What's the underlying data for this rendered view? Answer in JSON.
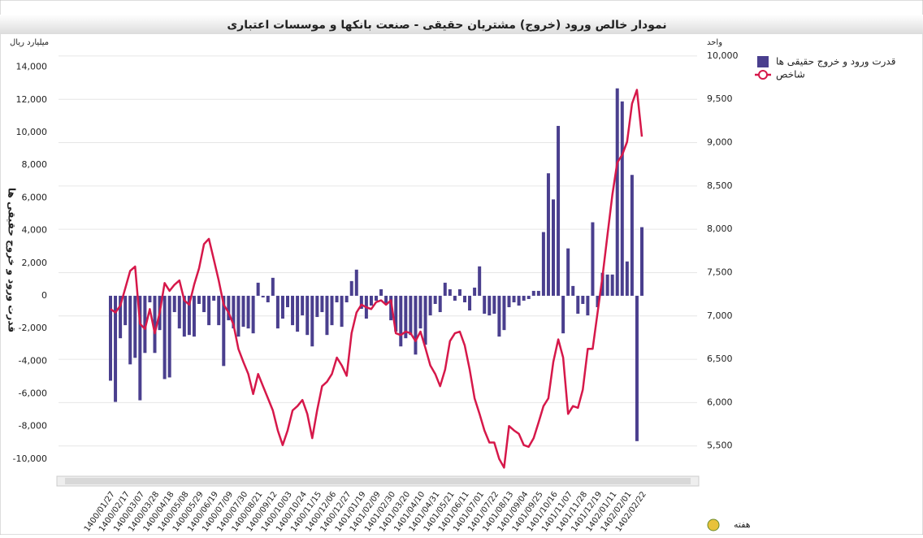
{
  "chart_data": {
    "type": "bar_line",
    "title": "نمودار خالص ورود (خروج) مشتریان حقیقی - صنعت بانکها و موسسات اعتباری",
    "y_unit": "میلیارد ریال",
    "y2_unit": "واحد",
    "ylabel": "قدرت ورود و خروج حقیقی ها",
    "xlabel": "هفته",
    "categories": [
      "1400/01/27",
      null,
      null,
      "1400/02/17",
      null,
      null,
      "1400/03/07",
      null,
      null,
      "1400/03/28",
      null,
      null,
      "1400/04/18",
      null,
      null,
      "1400/05/08",
      null,
      null,
      "1400/05/29",
      null,
      null,
      "1400/06/19",
      null,
      null,
      "1400/07/09",
      null,
      null,
      "1400/07/30",
      null,
      null,
      "1400/08/21",
      null,
      null,
      "1400/09/12",
      null,
      null,
      "1400/10/03",
      null,
      null,
      "1400/10/24",
      null,
      null,
      "1400/11/15",
      null,
      null,
      "1400/12/06",
      null,
      null,
      "1400/12/27",
      null,
      null,
      "1401/01/19",
      null,
      null,
      "1401/02/09",
      null,
      null,
      "1401/02/30",
      null,
      null,
      "1401/03/20",
      null,
      null,
      "1401/04/10",
      null,
      null,
      "1401/04/31",
      null,
      null,
      "1401/05/21",
      null,
      null,
      "1401/06/11",
      null,
      null,
      "1401/07/01",
      null,
      null,
      "1401/07/22",
      null,
      null,
      "1401/08/13",
      null,
      null,
      "1401/09/04",
      null,
      null,
      "1401/09/25",
      null,
      null,
      "1401/10/16",
      null,
      null,
      "1401/11/07",
      null,
      null,
      "1401/11/28",
      null,
      null,
      "1401/12/19",
      null,
      null,
      "1402/01/11",
      null,
      null,
      "1402/02/01",
      null,
      null,
      "1402/02/22"
    ],
    "series": [
      {
        "name": "قدرت ورود و خروج حقیقی ها",
        "color": "#4a3f8e",
        "values": [
          -5200,
          -6500,
          -2600,
          -1800,
          -4200,
          -3800,
          -6400,
          -3500,
          -400,
          -3500,
          -2100,
          -5100,
          -5000,
          -1000,
          -2000,
          -2500,
          -2400,
          -2500,
          -500,
          -1000,
          -1800,
          -300,
          -1800,
          -4300,
          -1500,
          -2000,
          -2500,
          -1900,
          -2000,
          -2300,
          800,
          -100,
          -400,
          1100,
          -2000,
          -1400,
          -700,
          -1800,
          -2200,
          -1200,
          -2400,
          -3100,
          -1300,
          -1000,
          -2400,
          -1800,
          -400,
          -1900,
          -400,
          900,
          1600,
          -800,
          -1400,
          -600,
          -300,
          400,
          -500,
          -1500,
          -2200,
          -3100,
          -2600,
          -2400,
          -3600,
          -2000,
          -3000,
          -1200,
          -500,
          -1000,
          800,
          400,
          -300,
          400,
          -400,
          -900,
          500,
          1800,
          -1100,
          -1200,
          -1100,
          -2500,
          -2100,
          -700,
          -400,
          -600,
          -300,
          -200,
          300,
          300,
          3900,
          7500,
          5900,
          10400,
          -2300,
          2900,
          600,
          -1100,
          -500,
          -1200,
          4500,
          -700,
          1400,
          1300,
          1300,
          12700,
          11900,
          2100,
          7400,
          -8900,
          4200
        ]
      },
      {
        "name": "شاخص",
        "color": "#d6184a",
        "axis": "y2",
        "values": [
          7080,
          7040,
          7120,
          7320,
          7520,
          7570,
          6910,
          6850,
          7080,
          6800,
          7040,
          7380,
          7290,
          7360,
          7410,
          7180,
          7130,
          7360,
          7550,
          7830,
          7890,
          7650,
          7410,
          7130,
          7040,
          6900,
          6620,
          6470,
          6330,
          6100,
          6330,
          6190,
          6050,
          5910,
          5680,
          5510,
          5680,
          5910,
          5960,
          6030,
          5870,
          5590,
          5910,
          6190,
          6240,
          6330,
          6520,
          6430,
          6310,
          6800,
          7040,
          7130,
          7100,
          7080,
          7160,
          7180,
          7130,
          7180,
          6800,
          6780,
          6820,
          6800,
          6710,
          6820,
          6630,
          6430,
          6330,
          6190,
          6380,
          6710,
          6800,
          6820,
          6660,
          6380,
          6050,
          5870,
          5680,
          5540,
          5540,
          5350,
          5250,
          5730,
          5680,
          5640,
          5510,
          5490,
          5590,
          5770,
          5960,
          6050,
          6470,
          6730,
          6520,
          5870,
          5960,
          5940,
          6150,
          6620,
          6620,
          7040,
          7460,
          7930,
          8400,
          8770,
          8860,
          9010,
          9450,
          9610,
          9070
        ]
      }
    ],
    "ylim": [
      -11000,
      15000
    ],
    "yticks": [
      {
        "value": -10000,
        "label": "-10,000"
      },
      {
        "value": -8000,
        "label": "-8,000"
      },
      {
        "value": -6000,
        "label": "-6,000"
      },
      {
        "value": -4000,
        "label": "-4,000"
      },
      {
        "value": -2000,
        "label": "-2,000"
      },
      0,
      {
        "value": 2000,
        "label": "2,000"
      },
      {
        "value": 4000,
        "label": "4,000"
      },
      {
        "value": 6000,
        "label": "6,000"
      },
      {
        "value": 8000,
        "label": "8,000"
      },
      {
        "value": 10000,
        "label": "10,000"
      },
      {
        "value": 12000,
        "label": "12,000"
      },
      {
        "value": 14000,
        "label": "14,000"
      }
    ],
    "y2lim": [
      5160,
      10060
    ],
    "y2ticks": [
      {
        "value": 5500,
        "label": "5,500"
      },
      {
        "value": 6000,
        "label": "6,000"
      },
      {
        "value": 6500,
        "label": "6,500"
      },
      {
        "value": 7000,
        "label": "7,000"
      },
      {
        "value": 7500,
        "label": "7,500"
      },
      {
        "value": 8000,
        "label": "8,000"
      },
      {
        "value": 8500,
        "label": "8,500"
      },
      {
        "value": 9000,
        "label": "9,000"
      },
      {
        "value": 9500,
        "label": "9,500"
      },
      {
        "value": 10000,
        "label": "10,000"
      }
    ],
    "grid": true,
    "legend": "top-right"
  }
}
